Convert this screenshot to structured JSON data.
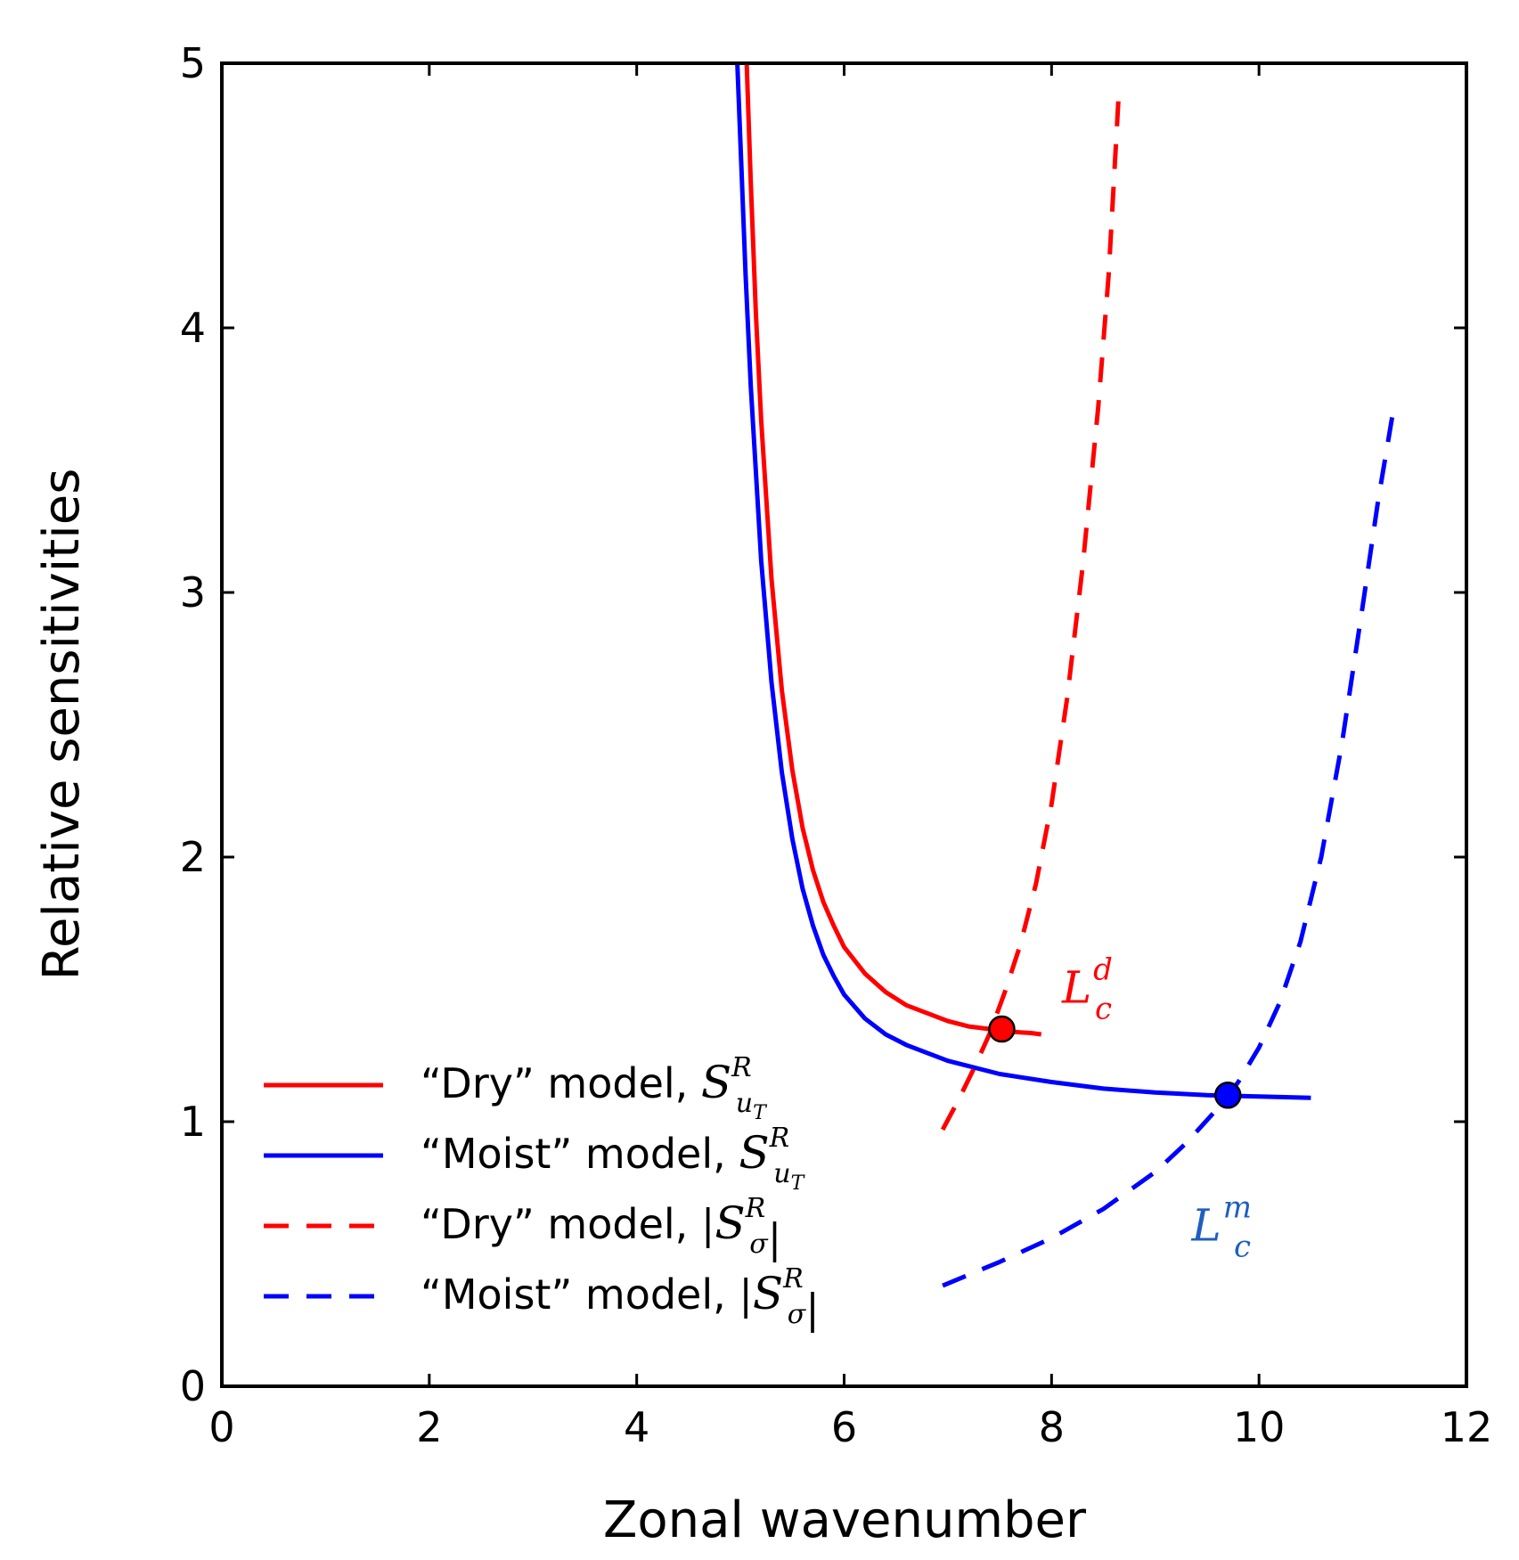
{
  "chart_data": {
    "type": "line",
    "xlabel": "Zonal wavenumber",
    "ylabel": "Relative sensitivities",
    "xlim": [
      0,
      12
    ],
    "ylim": [
      0,
      5
    ],
    "xticks": [
      "0",
      "2",
      "4",
      "6",
      "8",
      "10",
      "12"
    ],
    "yticks": [
      "0",
      "1",
      "2",
      "3",
      "4",
      "5"
    ],
    "grid": false,
    "legend_position": "lower-left",
    "series": [
      {
        "name": "“Dry” model, S_{u_T}^R",
        "legend_text": "“Dry” model, ",
        "legend_math": "S",
        "legend_sup": "R",
        "legend_sub": "u",
        "legend_subsub": "T",
        "style": "solid",
        "color": "#ff0000",
        "x": [
          5.06,
          5.1,
          5.15,
          5.2,
          5.3,
          5.4,
          5.5,
          5.6,
          5.7,
          5.8,
          5.9,
          6.0,
          6.2,
          6.4,
          6.6,
          6.8,
          7.0,
          7.2,
          7.4,
          7.6,
          7.8,
          7.9
        ],
        "y": [
          5.0,
          4.55,
          4.05,
          3.65,
          3.05,
          2.63,
          2.33,
          2.11,
          1.95,
          1.83,
          1.74,
          1.66,
          1.56,
          1.49,
          1.44,
          1.41,
          1.38,
          1.36,
          1.35,
          1.34,
          1.335,
          1.33
        ]
      },
      {
        "name": "“Moist” model, S_{u_T}^R",
        "legend_text": "“Moist” model, ",
        "legend_math": "S",
        "legend_sup": "R",
        "legend_sub": "u",
        "legend_subsub": "T",
        "style": "solid",
        "color": "#0000ff",
        "x": [
          4.97,
          5.0,
          5.05,
          5.1,
          5.2,
          5.3,
          5.4,
          5.5,
          5.6,
          5.7,
          5.8,
          5.9,
          6.0,
          6.2,
          6.4,
          6.6,
          6.8,
          7.0,
          7.5,
          8.0,
          8.5,
          9.0,
          9.5,
          10.0,
          10.5
        ],
        "y": [
          5.0,
          4.7,
          4.2,
          3.78,
          3.12,
          2.66,
          2.32,
          2.07,
          1.88,
          1.74,
          1.63,
          1.55,
          1.48,
          1.39,
          1.33,
          1.29,
          1.26,
          1.23,
          1.18,
          1.15,
          1.125,
          1.11,
          1.1,
          1.095,
          1.09
        ]
      },
      {
        "name": "“Dry” model, |S_σ^R|",
        "legend_text": "“Dry” model, ",
        "legend_math": "S",
        "legend_sup": "R",
        "legend_sub": "σ",
        "legend_abs": true,
        "style": "dashed",
        "color": "#ff0000",
        "x": [
          6.95,
          7.1,
          7.25,
          7.4,
          7.55,
          7.7,
          7.85,
          8.0,
          8.15,
          8.3,
          8.45,
          8.55,
          8.65
        ],
        "y": [
          0.97,
          1.08,
          1.2,
          1.33,
          1.49,
          1.67,
          1.9,
          2.2,
          2.6,
          3.1,
          3.7,
          4.2,
          4.9
        ]
      },
      {
        "name": "“Moist” model, |S_σ^R|",
        "legend_text": "“Moist” model, ",
        "legend_math": "S",
        "legend_sup": "R",
        "legend_sub": "σ",
        "legend_abs": true,
        "style": "dashed",
        "color": "#0000ff",
        "x": [
          6.95,
          7.5,
          8.0,
          8.5,
          9.0,
          9.3,
          9.6,
          9.8,
          10.0,
          10.2,
          10.4,
          10.6,
          10.8,
          11.0,
          11.15,
          11.3
        ],
        "y": [
          0.38,
          0.47,
          0.56,
          0.67,
          0.81,
          0.92,
          1.05,
          1.15,
          1.28,
          1.45,
          1.68,
          2.0,
          2.43,
          2.95,
          3.35,
          3.7
        ]
      }
    ],
    "markers": [
      {
        "x": 7.52,
        "y": 1.35,
        "color": "#ff0000"
      },
      {
        "x": 9.7,
        "y": 1.1,
        "color": "#0000ff"
      }
    ],
    "annotations": [
      {
        "base": "L",
        "sub": "c",
        "sup": "d",
        "x": 8.1,
        "y": 1.45,
        "color": "#ff0000"
      },
      {
        "base": "L",
        "sub": "c",
        "sup": "m",
        "x": 9.35,
        "y": 0.55,
        "color": "#1f5fbf"
      }
    ]
  }
}
